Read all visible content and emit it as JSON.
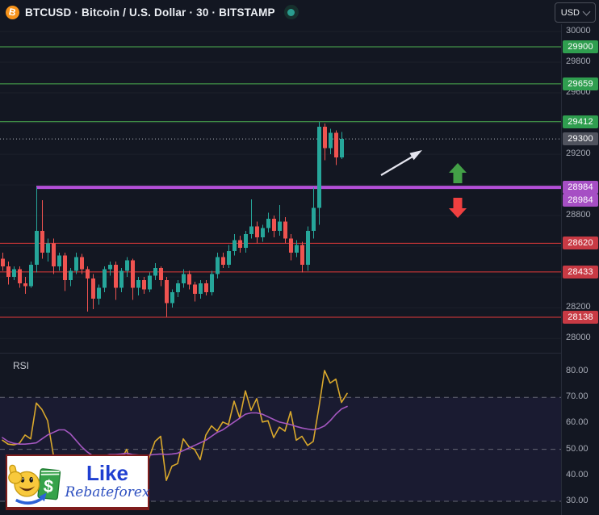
{
  "header": {
    "symbol_title": "BTCUSD · Bitcoin / U.S. Dollar · 30 · BITSTAMP",
    "bitcoin_glyph": "B",
    "currency_button_label": "USD"
  },
  "colors": {
    "background": "#131722",
    "candle_up": "#26a69a",
    "candle_down": "#ef5350",
    "resistance_line": "#4caf50",
    "resistance_label_bg": "#2f9e4f",
    "support_line": "#e13a3a",
    "support_label_bg": "#c83a44",
    "breakout_line": "#b44fd8",
    "breakout_label_bg": "#a64fc4",
    "current_price_label_bg": "#50535e",
    "current_price_dotted": "#b2b5be",
    "rsi_line": "#d9a82c",
    "rsi_ma_line": "#a457c0",
    "rsi_dashed_level": "#787b86",
    "up_arrow": "#43a047",
    "down_arrow": "#ef4040",
    "trend_arrow": "#e4e4ee",
    "axis_text": "#a6aab5"
  },
  "price_axis": {
    "plain_ticks": [
      {
        "label": "30000",
        "price": 30000
      },
      {
        "label": "29800",
        "price": 29800
      },
      {
        "label": "29600",
        "price": 29600
      },
      {
        "label": "29200",
        "price": 29200
      },
      {
        "label": "28800",
        "price": 28800
      },
      {
        "label": "28200",
        "price": 28200
      },
      {
        "label": "28000",
        "price": 28000
      }
    ],
    "level_labels": [
      {
        "label": "29900",
        "price": 29900,
        "kind": "resistance"
      },
      {
        "label": "29659",
        "price": 29659,
        "kind": "resistance"
      },
      {
        "label": "29412",
        "price": 29412,
        "kind": "resistance"
      },
      {
        "label": "29300",
        "price": 29300,
        "kind": "current"
      },
      {
        "label": "28984",
        "price": 28984,
        "kind": "breakout",
        "stack": 0
      },
      {
        "label": "28984",
        "price": 28984,
        "kind": "breakout",
        "stack": 1
      },
      {
        "label": "28620",
        "price": 28620,
        "kind": "support"
      },
      {
        "label": "28433",
        "price": 28433,
        "kind": "support"
      },
      {
        "label": "28138",
        "price": 28138,
        "kind": "support"
      }
    ]
  },
  "rsi_axis": {
    "ticks": [
      {
        "label": "80.00",
        "value": 80
      },
      {
        "label": "70.00",
        "value": 70
      },
      {
        "label": "60.00",
        "value": 60
      },
      {
        "label": "50.00",
        "value": 50
      },
      {
        "label": "40.00",
        "value": 40
      },
      {
        "label": "30.00",
        "value": 30
      }
    ]
  },
  "rsi_pane": {
    "label": "RSI"
  },
  "annotations": {
    "trend_arrow": "white arrow pointing up-right above breakout level",
    "breakout_arrow": "green block arrow pointing up above purple line",
    "breakdown_arrow": "red block arrow pointing down below purple line"
  },
  "logo": {
    "word_like": "Like",
    "word_brand": "Rebateforex",
    "dollar_glyph": "$"
  },
  "chart_data": [
    {
      "type": "candlestick",
      "title": "BTCUSD · Bitcoin / U.S. Dollar · 30 · BITSTAMP",
      "symbol": "BTCUSD",
      "exchange": "BITSTAMP",
      "interval": "30",
      "unit": "USD",
      "ylim": [
        27900,
        30050
      ],
      "grid_step": 200,
      "levels": {
        "resistance": [
          29900,
          29659,
          29412
        ],
        "support": [
          28620,
          28433,
          28138
        ],
        "breakout_ray": 28984,
        "last_price": 29300
      },
      "candles_ohlc": [
        [
          28520,
          28560,
          28440,
          28470
        ],
        [
          28470,
          28500,
          28350,
          28400
        ],
        [
          28400,
          28470,
          28380,
          28450
        ],
        [
          28450,
          28470,
          28330,
          28360
        ],
        [
          28360,
          28400,
          28290,
          28340
        ],
        [
          28340,
          28500,
          28330,
          28480
        ],
        [
          28480,
          28984,
          28430,
          28700
        ],
        [
          28700,
          28900,
          28520,
          28560
        ],
        [
          28560,
          28650,
          28500,
          28620
        ],
        [
          28620,
          28650,
          28420,
          28470
        ],
        [
          28470,
          28560,
          28440,
          28540
        ],
        [
          28540,
          28560,
          28310,
          28380
        ],
        [
          28380,
          28460,
          28340,
          28440
        ],
        [
          28440,
          28560,
          28420,
          28530
        ],
        [
          28530,
          28550,
          28420,
          28450
        ],
        [
          28450,
          28470,
          28175,
          28390
        ],
        [
          28390,
          28420,
          28190,
          28260
        ],
        [
          28260,
          28350,
          28220,
          28330
        ],
        [
          28330,
          28470,
          28300,
          28450
        ],
        [
          28450,
          28500,
          28410,
          28480
        ],
        [
          28480,
          28500,
          28250,
          28330
        ],
        [
          28330,
          28460,
          28300,
          28440
        ],
        [
          28440,
          28530,
          28400,
          28510
        ],
        [
          28510,
          28520,
          28250,
          28330
        ],
        [
          28330,
          28400,
          28280,
          28380
        ],
        [
          28380,
          28400,
          28290,
          28320
        ],
        [
          28320,
          28430,
          28300,
          28410
        ],
        [
          28410,
          28490,
          28380,
          28460
        ],
        [
          28460,
          28470,
          28340,
          28380
        ],
        [
          28380,
          28400,
          28140,
          28230
        ],
        [
          28230,
          28320,
          28200,
          28300
        ],
        [
          28300,
          28380,
          28270,
          28360
        ],
        [
          28360,
          28450,
          28330,
          28420
        ],
        [
          28420,
          28440,
          28320,
          28350
        ],
        [
          28350,
          28370,
          28240,
          28290
        ],
        [
          28290,
          28380,
          28260,
          28360
        ],
        [
          28360,
          28380,
          28280,
          28300
        ],
        [
          28300,
          28440,
          28280,
          28420
        ],
        [
          28420,
          28560,
          28390,
          28530
        ],
        [
          28530,
          28560,
          28460,
          28480
        ],
        [
          28480,
          28610,
          28460,
          28570
        ],
        [
          28570,
          28680,
          28540,
          28640
        ],
        [
          28640,
          28670,
          28560,
          28590
        ],
        [
          28590,
          28700,
          28560,
          28680
        ],
        [
          28680,
          28905,
          28650,
          28730
        ],
        [
          28730,
          28760,
          28620,
          28660
        ],
        [
          28660,
          28740,
          28630,
          28720
        ],
        [
          28720,
          28820,
          28690,
          28780
        ],
        [
          28780,
          28800,
          28660,
          28700
        ],
        [
          28700,
          28870,
          28670,
          28760
        ],
        [
          28760,
          28790,
          28620,
          28650
        ],
        [
          28650,
          28680,
          28510,
          28560
        ],
        [
          28560,
          28640,
          28530,
          28610
        ],
        [
          28610,
          28630,
          28430,
          28480
        ],
        [
          28480,
          28730,
          28440,
          28700
        ],
        [
          28700,
          28985,
          28650,
          28850
        ],
        [
          28850,
          29412,
          28740,
          29380
        ],
        [
          29380,
          29400,
          29160,
          29240
        ],
        [
          29240,
          29365,
          29200,
          29340
        ],
        [
          29340,
          29355,
          29130,
          29180
        ],
        [
          29180,
          29345,
          29170,
          29300
        ]
      ]
    },
    {
      "type": "line",
      "title": "RSI",
      "ylim": [
        27.5,
        84
      ],
      "levels": [
        70,
        50,
        30
      ],
      "series": [
        {
          "name": "RSI",
          "values": [
            53.5,
            52,
            51.7,
            52.3,
            55.5,
            54,
            67.8,
            65.3,
            61,
            48,
            38,
            42,
            40,
            45,
            42,
            36,
            33.5,
            37,
            45,
            47,
            42,
            46,
            50,
            41,
            43,
            41,
            47,
            53,
            55,
            38,
            43.5,
            44.5,
            54,
            51,
            50,
            46,
            55.5,
            59,
            57,
            60.5,
            59.5,
            68.5,
            62,
            72.5,
            65,
            69.5,
            60.5,
            61,
            54.5,
            58.5,
            57,
            64.5,
            53.5,
            55,
            51.5,
            53,
            66,
            80.3,
            75.5,
            77,
            68,
            71.5
          ]
        },
        {
          "name": "RSI MA",
          "values": [
            54.5,
            53,
            52.3,
            52,
            52,
            52.2,
            52.5,
            54,
            55.5,
            56.5,
            57.5,
            57.5,
            56,
            53.5,
            51,
            49,
            47.5,
            47,
            47.5,
            48,
            48,
            48.2,
            48.5,
            48,
            47.8,
            47.5,
            47.8,
            48,
            48.2,
            48,
            48.2,
            48.5,
            49.5,
            50.5,
            51.5,
            52.5,
            53.5,
            55,
            56.5,
            57.5,
            59,
            60.5,
            62,
            63.5,
            64,
            64,
            63.5,
            62.5,
            61.5,
            60.5,
            60,
            59.5,
            58.8,
            58.2,
            57.8,
            57.5,
            58,
            59,
            61,
            63.5,
            65.5,
            66.5
          ]
        }
      ]
    }
  ]
}
